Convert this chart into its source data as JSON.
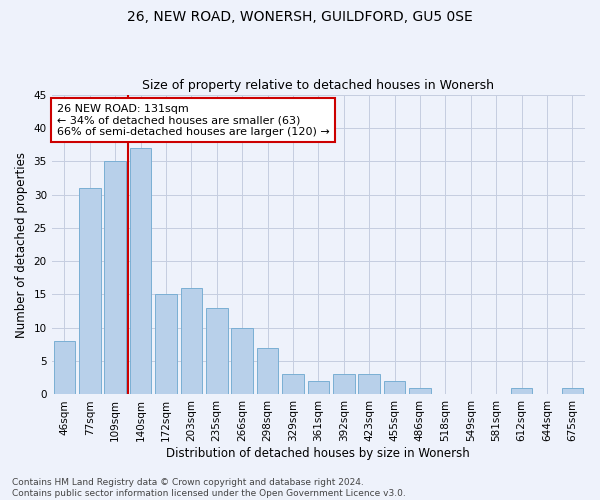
{
  "title": "26, NEW ROAD, WONERSH, GUILDFORD, GU5 0SE",
  "subtitle": "Size of property relative to detached houses in Wonersh",
  "xlabel": "Distribution of detached houses by size in Wonersh",
  "ylabel": "Number of detached properties",
  "bar_labels": [
    "46sqm",
    "77sqm",
    "109sqm",
    "140sqm",
    "172sqm",
    "203sqm",
    "235sqm",
    "266sqm",
    "298sqm",
    "329sqm",
    "361sqm",
    "392sqm",
    "423sqm",
    "455sqm",
    "486sqm",
    "518sqm",
    "549sqm",
    "581sqm",
    "612sqm",
    "644sqm",
    "675sqm"
  ],
  "bar_values": [
    8,
    31,
    35,
    37,
    15,
    16,
    13,
    10,
    7,
    3,
    2,
    3,
    3,
    2,
    1,
    0,
    0,
    0,
    1,
    0,
    1
  ],
  "bar_color": "#b8d0ea",
  "bar_edgecolor": "#7aafd4",
  "ylim": [
    0,
    45
  ],
  "yticks": [
    0,
    5,
    10,
    15,
    20,
    25,
    30,
    35,
    40,
    45
  ],
  "vline_color": "#cc0000",
  "vline_pos": 2.5,
  "annotation_line1": "26 NEW ROAD: 131sqm",
  "annotation_line2": "← 34% of detached houses are smaller (63)",
  "annotation_line3": "66% of semi-detached houses are larger (120) →",
  "annotation_box_color": "#ffffff",
  "annotation_box_edgecolor": "#cc0000",
  "footer_text": "Contains HM Land Registry data © Crown copyright and database right 2024.\nContains public sector information licensed under the Open Government Licence v3.0.",
  "bg_color": "#eef2fb",
  "title_fontsize": 10,
  "subtitle_fontsize": 9,
  "label_fontsize": 8.5,
  "tick_fontsize": 7.5,
  "footer_fontsize": 6.5,
  "annotation_fontsize": 8
}
